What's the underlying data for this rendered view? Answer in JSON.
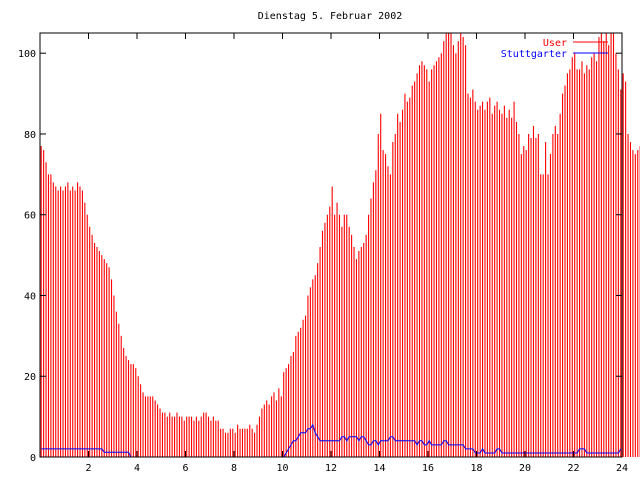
{
  "chart_data": {
    "type": "bar",
    "title": "Dienstag 5. Februar 2002",
    "xlabel": "",
    "ylabel": "",
    "xlim": [
      0,
      24
    ],
    "ylim": [
      0,
      105
    ],
    "x_step": 0.1,
    "xticks": [
      "2",
      "4",
      "6",
      "8",
      "10",
      "12",
      "14",
      "16",
      "18",
      "20",
      "22",
      "24"
    ],
    "yticks": [
      "0",
      "20",
      "40",
      "60",
      "80",
      "100"
    ],
    "grid": false,
    "legend_position": "top-right",
    "series": [
      {
        "name": "User",
        "kind": "impulses",
        "color": "#ff0000",
        "values": [
          77,
          76,
          73,
          70,
          70,
          68,
          67,
          66,
          67,
          66,
          67,
          68,
          66,
          67,
          66,
          68,
          67,
          66,
          63,
          60,
          57,
          55,
          53,
          52,
          51,
          50,
          49,
          48,
          47,
          44,
          40,
          36,
          33,
          30,
          27,
          25,
          24,
          23,
          23,
          22,
          20,
          18,
          16,
          15,
          15,
          15,
          15,
          14,
          13,
          12,
          11,
          11,
          10,
          11,
          10,
          10,
          11,
          10,
          10,
          9,
          10,
          10,
          10,
          9,
          10,
          9,
          10,
          11,
          11,
          10,
          9,
          10,
          9,
          9,
          7,
          7,
          6,
          6,
          7,
          7,
          6,
          8,
          7,
          7,
          7,
          7,
          8,
          7,
          6,
          8,
          10,
          12,
          13,
          14,
          13,
          15,
          16,
          14,
          17,
          15,
          21,
          22,
          23,
          25,
          26,
          30,
          31,
          32,
          34,
          35,
          40,
          42,
          44,
          45,
          48,
          52,
          56,
          58,
          60,
          62,
          67,
          60,
          63,
          60,
          57,
          60,
          60,
          57,
          55,
          52,
          49,
          51,
          52,
          53,
          55,
          60,
          64,
          68,
          71,
          80,
          85,
          76,
          75,
          72,
          70,
          78,
          80,
          85,
          83,
          86,
          90,
          88,
          89,
          92,
          93,
          95,
          97,
          98,
          97,
          96,
          93,
          96,
          97,
          98,
          99,
          100,
          103,
          105,
          105,
          105,
          102,
          100,
          103,
          105,
          104,
          102,
          90,
          89,
          91,
          88,
          86,
          87,
          88,
          86,
          88,
          89,
          85,
          87,
          88,
          86,
          85,
          87,
          84,
          86,
          84,
          88,
          83,
          80,
          75,
          77,
          76,
          80,
          79,
          82,
          79,
          80,
          70,
          70,
          78,
          70,
          75,
          80,
          82,
          80,
          85,
          90,
          92,
          95,
          96,
          99,
          100,
          96,
          96,
          98,
          95,
          97,
          96,
          99,
          100,
          98,
          104,
          105,
          103,
          105,
          102,
          105,
          105,
          100,
          96,
          91,
          95,
          93,
          80,
          78,
          76,
          75,
          76,
          77,
          75,
          77
        ]
      },
      {
        "name": "Stuttgarter",
        "kind": "line",
        "color": "#0000ff",
        "values": [
          2,
          2,
          2,
          2,
          2,
          2,
          2,
          2,
          2,
          2,
          2,
          2,
          2,
          2,
          2,
          2,
          2,
          2,
          2,
          2,
          2,
          2,
          2,
          2,
          2,
          2,
          1.2,
          1.2,
          1.2,
          1.2,
          1.2,
          1.2,
          1.2,
          1.2,
          1.2,
          1.2,
          1.2,
          0,
          0,
          0,
          0,
          0,
          0,
          0,
          0,
          0,
          0,
          0,
          0,
          0,
          0,
          0,
          0,
          0,
          0,
          0,
          0,
          0,
          0,
          0,
          0,
          0,
          0,
          0,
          0,
          0,
          0,
          0,
          0,
          0,
          0,
          0,
          0,
          0,
          0,
          0,
          0,
          0,
          0,
          0,
          0,
          0,
          0,
          0,
          0,
          0,
          0,
          0,
          0,
          0,
          0,
          0,
          0,
          0,
          0,
          0,
          0,
          0,
          0,
          0,
          0,
          1,
          2,
          3,
          4,
          4,
          5,
          6,
          6,
          6,
          7,
          7,
          8,
          6,
          5,
          4,
          4,
          4,
          4,
          4,
          4,
          4,
          4,
          4,
          5,
          5,
          4,
          5,
          5,
          5,
          5,
          4,
          5,
          5,
          4,
          3,
          3,
          4,
          4,
          3,
          4,
          4,
          4,
          4,
          5,
          5,
          4,
          4,
          4,
          4,
          4,
          4,
          4,
          4,
          4,
          3,
          4,
          4,
          3,
          3,
          4,
          3,
          3,
          3,
          3,
          3,
          4,
          4,
          3,
          3,
          3,
          3,
          3,
          3,
          3,
          2,
          2,
          2,
          2,
          1,
          1,
          1,
          2,
          1,
          1,
          1,
          1,
          1,
          2,
          2,
          1,
          1,
          1,
          1,
          1,
          1,
          1,
          1,
          1,
          1,
          1,
          1,
          1,
          1,
          1,
          1,
          1,
          1,
          1,
          1,
          1,
          1,
          1,
          1,
          1,
          1,
          1,
          1,
          1,
          1,
          1,
          1,
          2,
          2,
          2,
          1,
          1,
          1,
          1,
          1,
          1,
          1,
          1,
          1,
          1,
          1,
          1,
          1,
          1,
          2
        ]
      }
    ]
  }
}
